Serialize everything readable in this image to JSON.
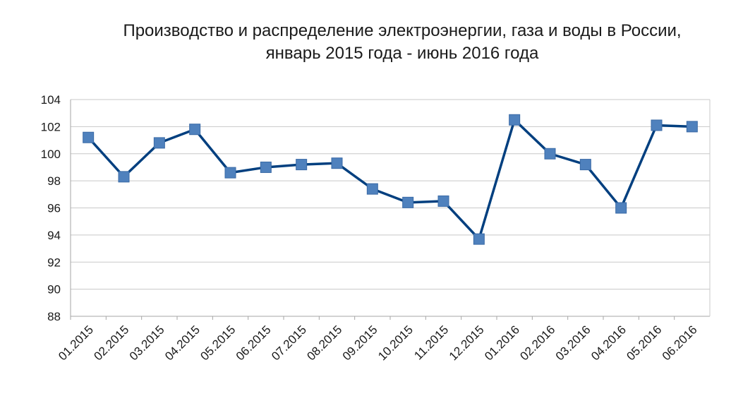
{
  "chart_data": {
    "type": "line",
    "title": "Производство и распределение электроэнергии, газа и воды в России,",
    "subtitle": "январь 2015 года - июнь 2016 года",
    "xlabel": "",
    "ylabel": "",
    "categories": [
      "01.2015",
      "02.2015",
      "03.2015",
      "04.2015",
      "05.2015",
      "06.2015",
      "07.2015",
      "08.2015",
      "09.2015",
      "10.2015",
      "11.2015",
      "12.2015",
      "01.2016",
      "02.2016",
      "03.2016",
      "04.2016",
      "05.2016",
      "06.2016"
    ],
    "series": [
      {
        "values": [
          101.2,
          98.3,
          100.8,
          101.8,
          98.6,
          99.0,
          99.2,
          99.3,
          97.4,
          96.4,
          96.5,
          93.7,
          102.5,
          100.0,
          99.2,
          96.0,
          102.1,
          102.0
        ]
      }
    ],
    "ylim": [
      88,
      104
    ],
    "yticks": [
      "88",
      "90",
      "92",
      "94",
      "96",
      "98",
      "100",
      "102",
      "104"
    ],
    "grid": "horizontal",
    "legend": "none",
    "colors": {
      "line": "#003f7f",
      "marker": "#4f81bd",
      "marker_edge": "#3a6aa6",
      "grid": "#c8c8c8",
      "axis": "#a6a6a6"
    }
  }
}
